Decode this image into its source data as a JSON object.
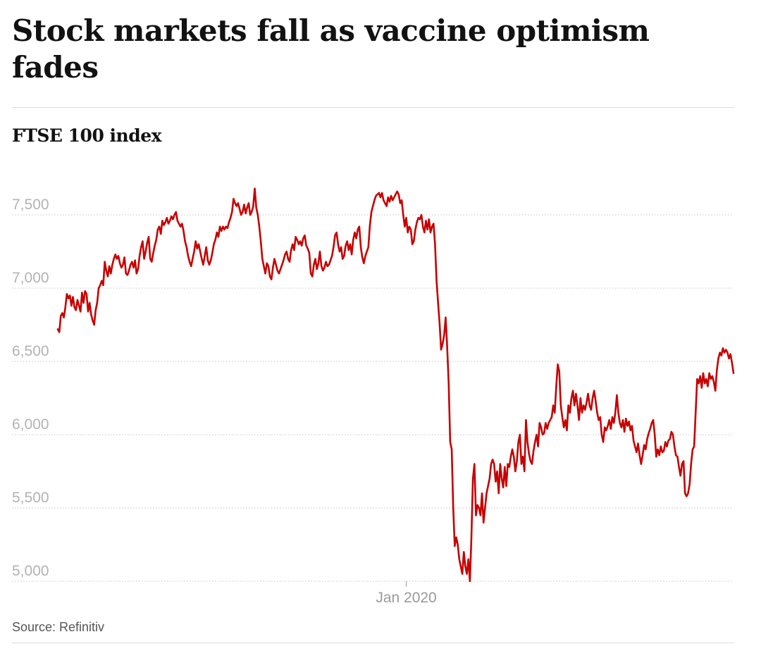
{
  "headline": "Stock markets fall as vaccine optimism fades",
  "source": "Source: Refinitiv",
  "chart_data": {
    "type": "line",
    "title": "FTSE 100 index",
    "xlabel": "",
    "ylabel": "",
    "ylim": [
      5000,
      7750
    ],
    "yticks": [
      {
        "value": 7500,
        "label": "7,500"
      },
      {
        "value": 7000,
        "label": "7,000"
      },
      {
        "value": 6500,
        "label": "6,500"
      },
      {
        "value": 6000,
        "label": "6,000"
      },
      {
        "value": 5500,
        "label": "5,500"
      },
      {
        "value": 5000,
        "label": "5,000"
      }
    ],
    "xticks": [
      {
        "index": 230,
        "label": "Jan 2020"
      }
    ],
    "grid": true,
    "line_color": "#c70000",
    "series": [
      {
        "values": [
          6720,
          6700,
          6810,
          6830,
          6800,
          6870,
          6960,
          6930,
          6950,
          6880,
          6940,
          6870,
          6850,
          6920,
          6880,
          6840,
          6970,
          6900,
          6980,
          6960,
          6840,
          6900,
          6820,
          6780,
          6750,
          6850,
          6900,
          7000,
          7020,
          7050,
          7020,
          7180,
          7120,
          7080,
          7150,
          7100,
          7160,
          7200,
          7230,
          7200,
          7220,
          7170,
          7140,
          7160,
          7210,
          7100,
          7090,
          7120,
          7160,
          7180,
          7140,
          7190,
          7100,
          7130,
          7220,
          7280,
          7320,
          7200,
          7250,
          7310,
          7350,
          7200,
          7180,
          7240,
          7290,
          7330,
          7400,
          7420,
          7370,
          7460,
          7430,
          7450,
          7480,
          7440,
          7460,
          7490,
          7470,
          7500,
          7520,
          7460,
          7440,
          7420,
          7440,
          7390,
          7320,
          7280,
          7220,
          7180,
          7150,
          7200,
          7250,
          7320,
          7270,
          7300,
          7250,
          7200,
          7160,
          7220,
          7280,
          7190,
          7160,
          7190,
          7240,
          7300,
          7330,
          7380,
          7350,
          7420,
          7390,
          7420,
          7400,
          7420,
          7410,
          7450,
          7480,
          7520,
          7610,
          7580,
          7560,
          7580,
          7540,
          7500,
          7520,
          7570,
          7510,
          7550,
          7580,
          7500,
          7520,
          7560,
          7680,
          7550,
          7500,
          7420,
          7320,
          7200,
          7150,
          7100,
          7170,
          7150,
          7080,
          7060,
          7140,
          7200,
          7160,
          7120,
          7100,
          7130,
          7160,
          7190,
          7230,
          7250,
          7200,
          7180,
          7260,
          7300,
          7260,
          7350,
          7330,
          7300,
          7320,
          7290,
          7340,
          7360,
          7290,
          7270,
          7240,
          7100,
          7080,
          7160,
          7200,
          7130,
          7170,
          7250,
          7150,
          7120,
          7140,
          7180,
          7150,
          7160,
          7190,
          7220,
          7280,
          7360,
          7380,
          7300,
          7250,
          7280,
          7200,
          7220,
          7290,
          7320,
          7260,
          7300,
          7230,
          7330,
          7380,
          7340,
          7400,
          7420,
          7280,
          7210,
          7170,
          7220,
          7250,
          7280,
          7430,
          7520,
          7560,
          7600,
          7630,
          7640,
          7650,
          7620,
          7650,
          7600,
          7580,
          7560,
          7620,
          7590,
          7630,
          7600,
          7620,
          7640,
          7660,
          7640,
          7580,
          7600,
          7500,
          7420,
          7480,
          7380,
          7420,
          7400,
          7300,
          7320,
          7400,
          7450,
          7480,
          7470,
          7500,
          7420,
          7380,
          7460,
          7400,
          7470,
          7380,
          7420,
          7440,
          7300,
          7050,
          6900,
          6760,
          6580,
          6620,
          6680,
          6800,
          6600,
          6350,
          5950,
          5900,
          5500,
          5240,
          5300,
          5250,
          5150,
          5100,
          5050,
          5200,
          5100,
          5050,
          5150,
          5000,
          5300,
          5700,
          5800,
          5450,
          5520,
          5500,
          5450,
          5600,
          5400,
          5500,
          5600,
          5650,
          5700,
          5800,
          5830,
          5800,
          5680,
          5750,
          5600,
          5800,
          5700,
          5640,
          5780,
          5650,
          5800,
          5780,
          5850,
          5900,
          5850,
          5750,
          5820,
          5950,
          6000,
          5800,
          5850,
          5750,
          6100,
          5950,
          5870,
          5820,
          5800,
          5890,
          5950,
          6000,
          5920,
          6080,
          6050,
          6000,
          6010,
          6080,
          6040,
          6080,
          6100,
          6120,
          6200,
          6150,
          6330,
          6480,
          6430,
          6200,
          6120,
          6050,
          6100,
          6030,
          6200,
          6150,
          6250,
          6300,
          6200,
          6280,
          6200,
          6100,
          6250,
          6150,
          6200,
          6170,
          6220,
          6280,
          6200,
          6170,
          6250,
          6300,
          6230,
          6150,
          6100,
          6120,
          6000,
          5950,
          6050,
          6030,
          6060,
          6100,
          6040,
          6120,
          6080,
          6150,
          6270,
          6150,
          6080,
          6050,
          6100,
          6020,
          6110,
          6060,
          6090,
          6030,
          6060,
          5960,
          5920,
          5880,
          5940,
          5860,
          5800,
          5860,
          5930,
          5900,
          5970,
          6010,
          6040,
          6080,
          6100,
          6000,
          5850,
          5900,
          5860,
          5920,
          5880,
          5890,
          5950,
          5920,
          5960,
          5970,
          6020,
          6000,
          5920,
          5860,
          5850,
          5780,
          5720,
          5800,
          5820,
          5600,
          5580,
          5600,
          5660,
          5800,
          5900,
          5920,
          6150,
          6380,
          6350,
          6400,
          6320,
          6420,
          6350,
          6380,
          6330,
          6420,
          6380,
          6400,
          6360,
          6300,
          6440,
          6520,
          6560,
          6540,
          6590,
          6560,
          6580,
          6560,
          6520,
          6550,
          6490,
          6420
        ]
      }
    ]
  }
}
